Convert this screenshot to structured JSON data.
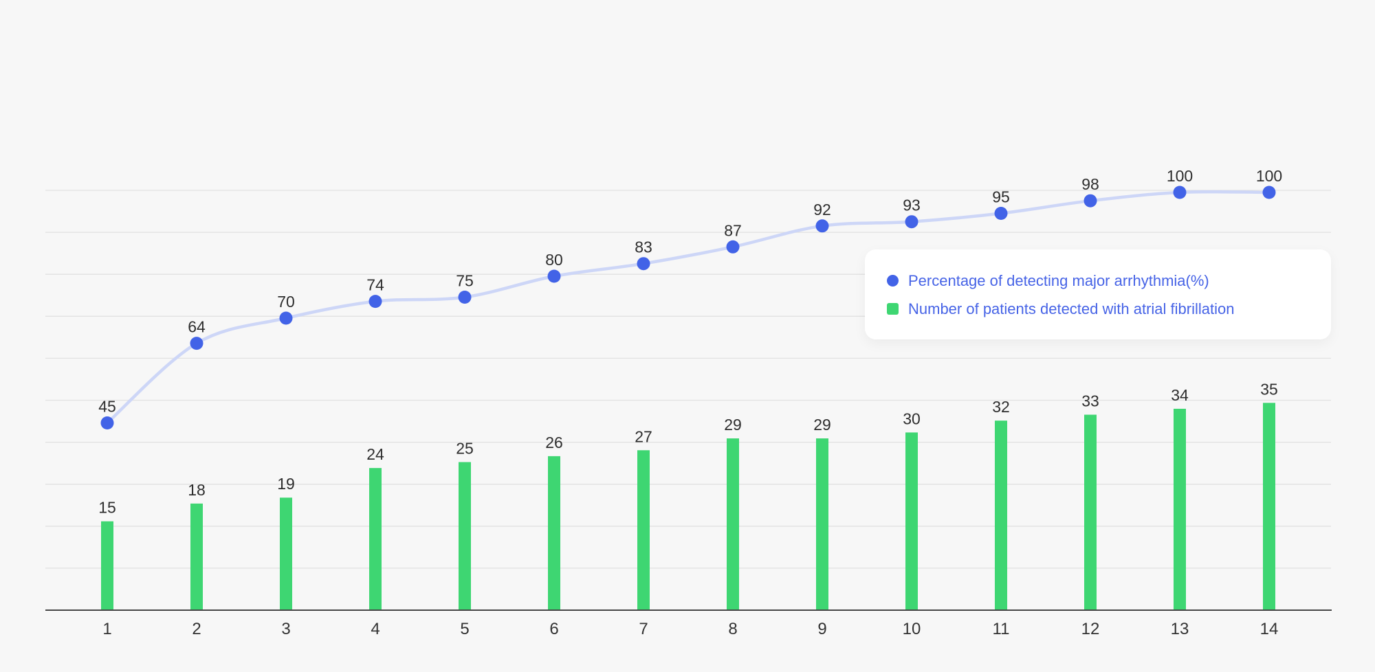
{
  "app": {
    "background": "#f7f7f7"
  },
  "legend": {
    "items": [
      {
        "label": "Percentage of detecting major arrhythmia(%)",
        "marker": "circle",
        "color": "#4263e7"
      },
      {
        "label": "Number of patients detected with atrial fibrillation",
        "marker": "square",
        "color": "#3ed672"
      }
    ]
  },
  "chart_data": {
    "type": "combo",
    "categories": [
      "1",
      "2",
      "3",
      "4",
      "5",
      "6",
      "7",
      "8",
      "9",
      "10",
      "11",
      "12",
      "13",
      "14"
    ],
    "series": [
      {
        "name": "Percentage of detecting major arrhythmia(%)",
        "type": "line",
        "values": [
          45,
          64,
          70,
          74,
          75,
          80,
          83,
          87,
          92,
          93,
          95,
          98,
          100,
          100
        ],
        "point_color": "#4263e7",
        "line_color": "#cdd6f7",
        "axis_range": [
          0,
          100
        ],
        "data_labels": true
      },
      {
        "name": "Number of patients detected with atrial fibrillation",
        "type": "bar",
        "values": [
          15,
          18,
          19,
          24,
          25,
          26,
          27,
          29,
          29,
          30,
          32,
          33,
          34,
          35
        ],
        "color": "#3ed672",
        "data_labels": true
      }
    ],
    "title": "",
    "xlabel": "",
    "ylabel": "",
    "grid": true,
    "gridline_color": "#e1e1e1",
    "axis_line_color": "#464646",
    "label_color": "#2d2d2d",
    "y_axis_tick_labels_visible": false,
    "legend_position": "middle-right"
  }
}
